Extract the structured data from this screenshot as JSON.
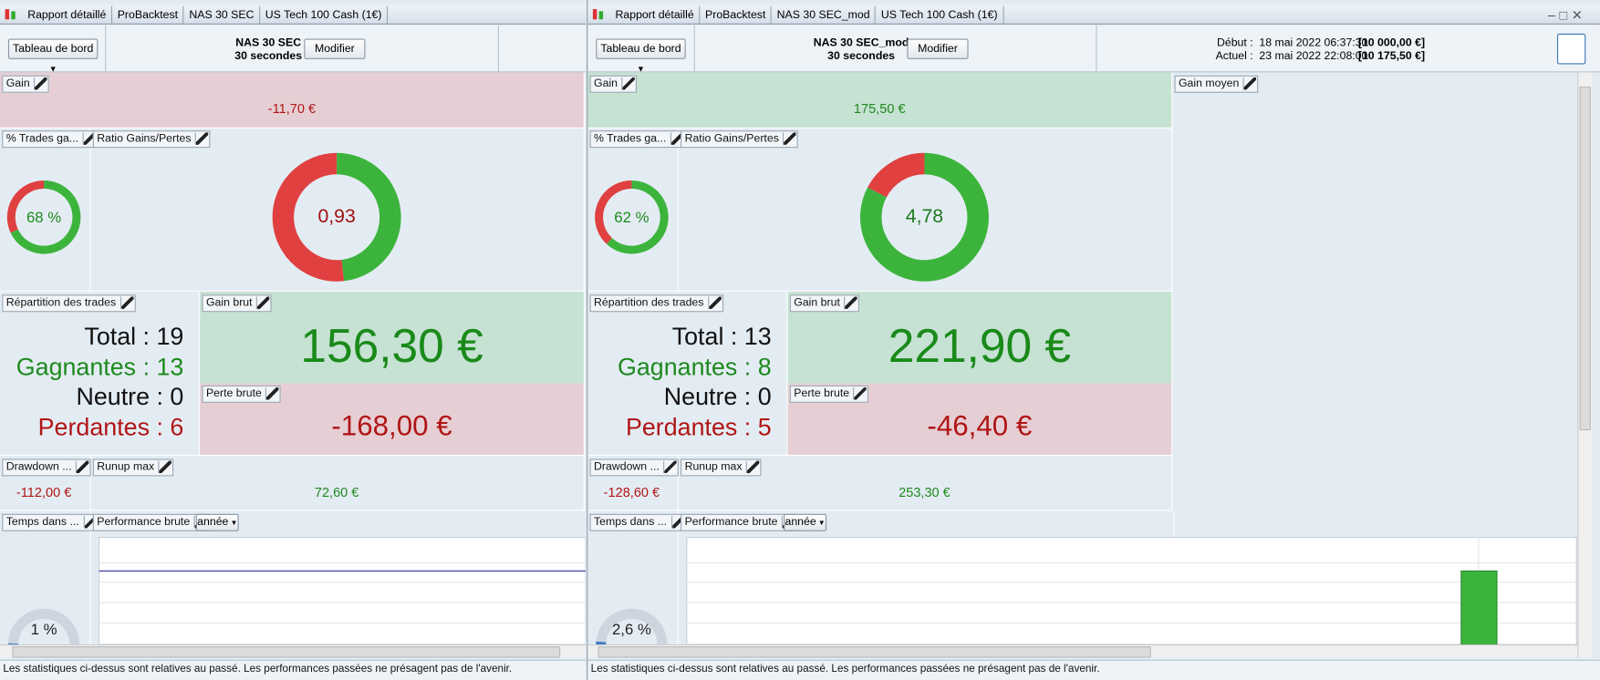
{
  "panels": [
    {
      "tabs": [
        "Rapport détaillé",
        "ProBacktest",
        "NAS 30 SEC",
        "US Tech 100 Cash (1€)"
      ],
      "dashboard": "Tableau de bord",
      "title": "NAS 30 SEC",
      "timeframe": "30 secondes",
      "button": "Modifier",
      "gain": {
        "label": "Gain",
        "value": "-11,70 €",
        "color": "#b01515",
        "background": "#e6cfd4"
      },
      "win_rate": {
        "label": "% Trades ga...",
        "value": 68,
        "value_label": "68 %"
      },
      "ratio": {
        "label": "Ratio Gains/Pertes",
        "value": "0,93",
        "color": "#a01010"
      },
      "distribution": {
        "label": "Répartition des trades",
        "rows": [
          {
            "text": "Total : 19",
            "color": "#111"
          },
          {
            "text": "Gagnantes : 13",
            "color": "#1e8a1e"
          },
          {
            "text": "Neutre : 0",
            "color": "#111"
          },
          {
            "text": "Perdantes : 6",
            "color": "#b01515"
          }
        ]
      },
      "gross_gain": {
        "label": "Gain brut",
        "value": 156.3,
        "value_label": "156,30 €"
      },
      "gross_loss": {
        "label": "Perte brute",
        "value": -168,
        "value_label": "-168,00 €"
      },
      "drawdown": {
        "label": "Drawdown ...",
        "value": "-112,00 €"
      },
      "runup": {
        "label": "Runup max",
        "value": "72,60 €"
      },
      "time_in_market": {
        "label": "Temps dans ...",
        "value": 1,
        "value_label": "1 %"
      },
      "performance": {
        "label": "Performance brute",
        "period": "année"
      },
      "footer": "Les statistiques ci-dessus sont relatives au passé. Les performances passées ne présagent pas de l'avenir."
    },
    {
      "tabs": [
        "Rapport détaillé",
        "ProBacktest",
        "NAS 30 SEC_mod",
        "US Tech 100 Cash (1€)"
      ],
      "dashboard": "Tableau de bord",
      "title": "NAS 30 SEC_mod",
      "timeframe": "30 secondes",
      "button": "Modifier",
      "start": {
        "label": "Début :",
        "date": "18 mai 2022 06:37:30",
        "capital": "[10 000,00 €]"
      },
      "current": {
        "label": "Actuel :",
        "date": "23 mai 2022 22:08:00",
        "capital": "[10 175,50 €]"
      },
      "gain": {
        "label": "Gain",
        "value": "175,50 €",
        "color": "#1e8a1e",
        "background": "#c6e2d3"
      },
      "average_gain": {
        "label": "Gain moyen"
      },
      "win_rate": {
        "label": "% Trades ga...",
        "value": 62,
        "value_label": "62 %"
      },
      "ratio": {
        "label": "Ratio Gains/Pertes",
        "value": "4,78",
        "color": "#1e7a1e"
      },
      "distribution": {
        "label": "Répartition des trades",
        "rows": [
          {
            "text": "Total : 13",
            "color": "#111"
          },
          {
            "text": "Gagnantes : 8",
            "color": "#1e8a1e"
          },
          {
            "text": "Neutre : 0",
            "color": "#111"
          },
          {
            "text": "Perdantes : 5",
            "color": "#b01515"
          }
        ]
      },
      "gross_gain": {
        "label": "Gain brut",
        "value": 221.9,
        "value_label": "221,90 €"
      },
      "gross_loss": {
        "label": "Perte brute",
        "value": -46.4,
        "value_label": "-46,40 €"
      },
      "drawdown": {
        "label": "Drawdown ...",
        "value": "-128,60 €"
      },
      "runup": {
        "label": "Runup max",
        "value": "253,30 €"
      },
      "time_in_market": {
        "label": "Temps dans ...",
        "value": 2.6,
        "value_label": "2,6 %"
      },
      "performance": {
        "label": "Performance brute",
        "period": "année"
      },
      "footer": "Les statistiques ci-dessus sont relatives au passé. Les performances passées ne présagent pas de l'avenir."
    }
  ]
}
